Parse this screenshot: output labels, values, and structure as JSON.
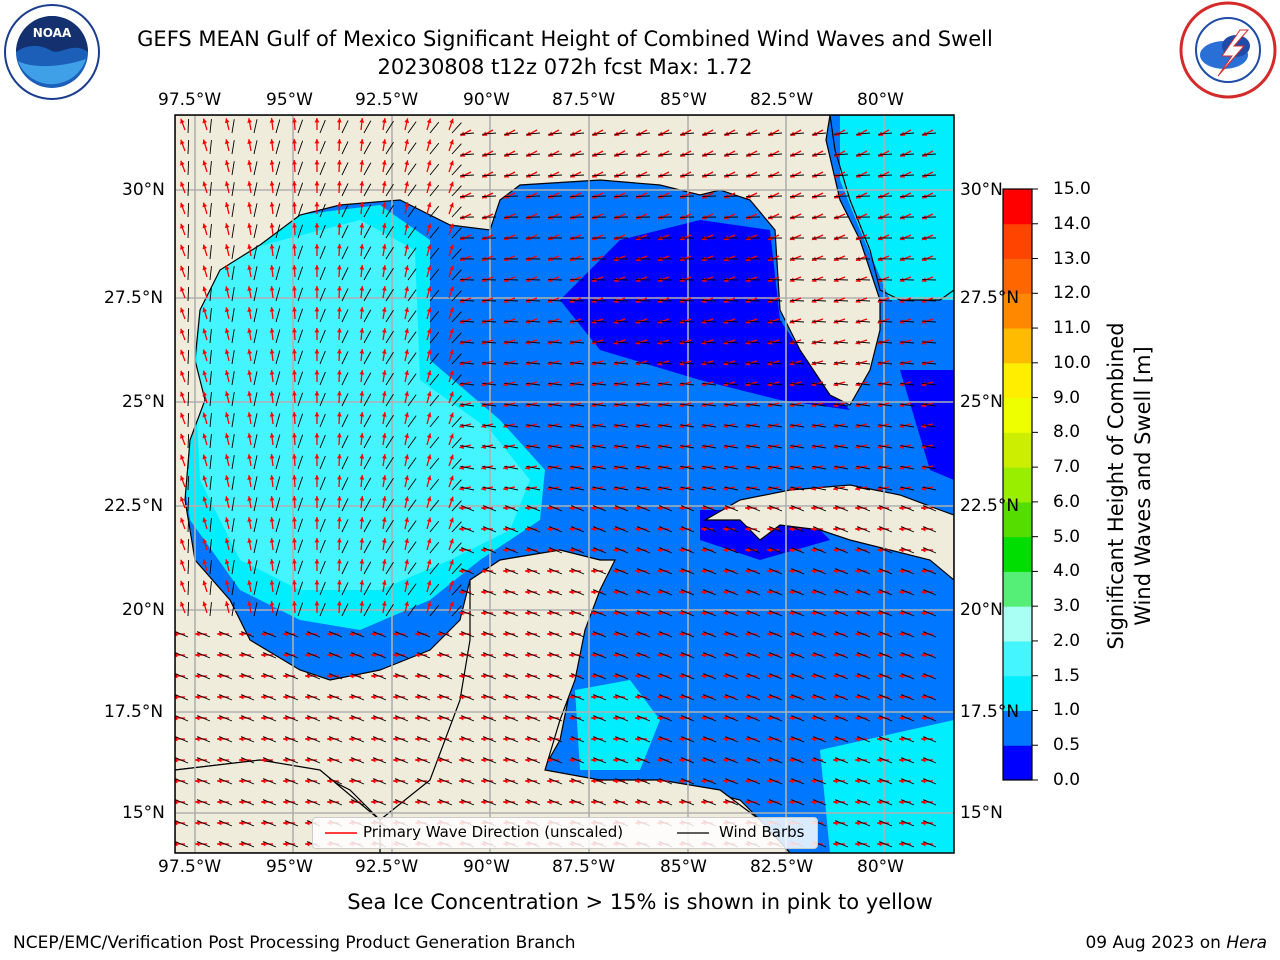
{
  "title": {
    "line1": "GEFS MEAN Gulf of Mexico Significant Height of Combined Wind Waves and Swell",
    "line2": "20230808 t12z 072h fcst   Max: 1.72"
  },
  "logos": {
    "left": {
      "name": "noaa-logo",
      "text": "NOAA"
    },
    "right": {
      "name": "national-weather-service-logo"
    }
  },
  "map": {
    "lon_ticks": [
      "97.5°W",
      "95°W",
      "92.5°W",
      "90°W",
      "87.5°W",
      "85°W",
      "82.5°W",
      "80°W"
    ],
    "lat_ticks": [
      "30°N",
      "27.5°N",
      "25°N",
      "22.5°N",
      "20°N",
      "17.5°N",
      "15°N"
    ],
    "land_color": "#efecdc",
    "grid_color": "#b0b0b0",
    "wave_arrow_color": "#ff0000",
    "wind_barb_color": "#000000"
  },
  "legend": {
    "wave_label": "Primary Wave Direction (unscaled)",
    "barb_label": "Wind Barbs"
  },
  "colorbar": {
    "label_line1": "Significant Height of Combined",
    "label_line2": "Wind Waves and Swell [m]",
    "ticks": [
      "15.0",
      "14.0",
      "13.0",
      "12.0",
      "11.0",
      "10.0",
      "9.0",
      "8.0",
      "7.0",
      "6.0",
      "5.0",
      "4.0",
      "3.0",
      "2.0",
      "1.5",
      "1.0",
      "0.5",
      "0.0"
    ],
    "bins": [
      {
        "range": "0.0-0.5",
        "color": "#0000ff"
      },
      {
        "range": "0.5-1.0",
        "color": "#0077ff"
      },
      {
        "range": "1.0-1.5",
        "color": "#00eeff"
      },
      {
        "range": "1.5-2.0",
        "color": "#44f5ff"
      },
      {
        "range": "2.0-3.0",
        "color": "#aafff5"
      },
      {
        "range": "3.0-4.0",
        "color": "#55ee77"
      },
      {
        "range": "4.0-5.0",
        "color": "#00dd00"
      },
      {
        "range": "5.0-6.0",
        "color": "#55dd00"
      },
      {
        "range": "6.0-7.0",
        "color": "#99ee00"
      },
      {
        "range": "7.0-8.0",
        "color": "#ccee00"
      },
      {
        "range": "8.0-9.0",
        "color": "#eeff00"
      },
      {
        "range": "9.0-10.0",
        "color": "#ffee00"
      },
      {
        "range": "10.0-11.0",
        "color": "#ffbb00"
      },
      {
        "range": "11.0-12.0",
        "color": "#ff8800"
      },
      {
        "range": "12.0-13.0",
        "color": "#ff6600"
      },
      {
        "range": "13.0-14.0",
        "color": "#ff4400"
      },
      {
        "range": "14.0-15.0",
        "color": "#ff0000"
      }
    ]
  },
  "subnote": "Sea Ice Concentration > 15% is shown in pink to yellow",
  "footer": {
    "left": "NCEP/EMC/Verification Post Processing Product Generation Branch",
    "date": "09 Aug 2023 on ",
    "machine": "Hera"
  }
}
